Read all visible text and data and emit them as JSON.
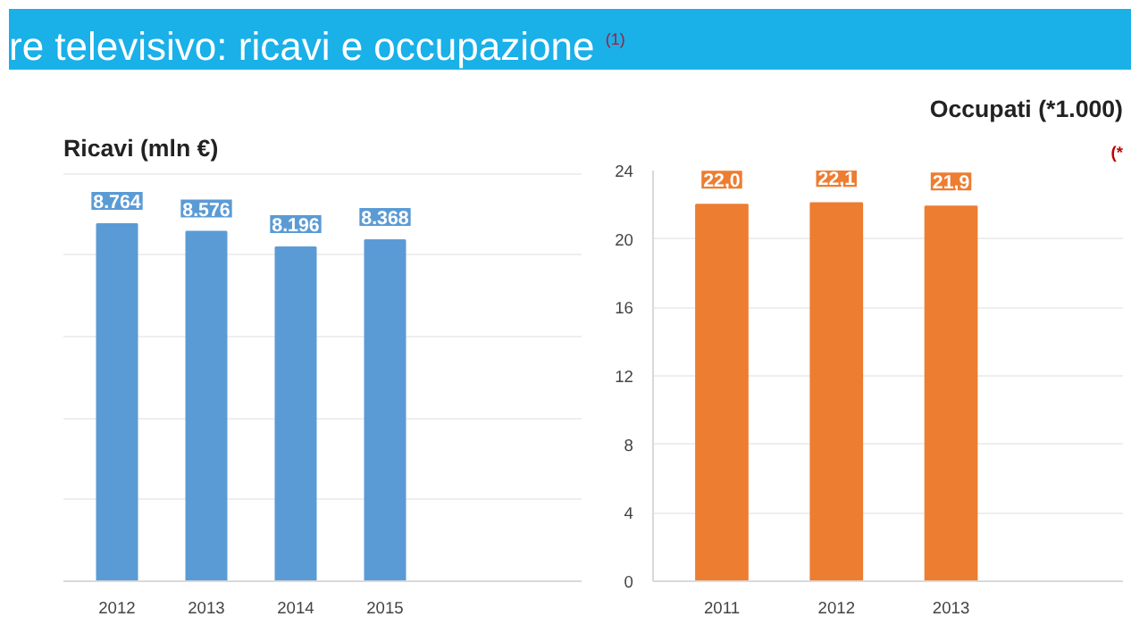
{
  "chart_data": [
    {
      "type": "bar",
      "title": "re televisivo: ricavi e occupazione",
      "subtitle": "Ricavi (mln €)",
      "annotations": [
        "(1)"
      ],
      "categories": [
        "2012",
        "2013",
        "2014",
        "2015"
      ],
      "values": [
        8764,
        8576,
        8196,
        8368
      ],
      "value_labels": [
        "8.764",
        "8.576",
        "8.196",
        "8.368"
      ],
      "color": "#5b9bd5",
      "grid": "y",
      "tick_labels": "x"
    },
    {
      "type": "bar",
      "title": "Occupati (*1.000)",
      "annotations": [
        "(*"
      ],
      "categories": [
        "2011",
        "2012",
        "2013"
      ],
      "values": [
        22.0,
        22.1,
        21.9
      ],
      "value_labels": [
        "22,0",
        "22,1",
        "21,9"
      ],
      "color": "#ed7d31",
      "ylim": [
        0,
        24
      ],
      "yticks": [
        0,
        4,
        8,
        12,
        16,
        20,
        24
      ],
      "grid": "y"
    }
  ]
}
